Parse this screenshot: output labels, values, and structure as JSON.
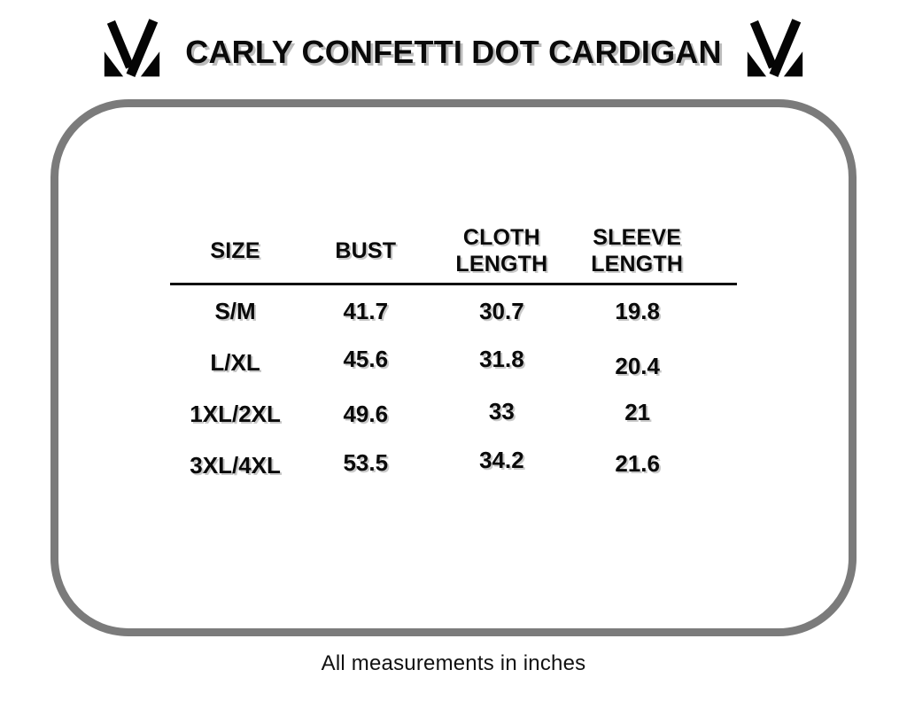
{
  "header": {
    "title": "CARLY CONFETTI DOT CARDIGAN",
    "logo_icon": "m-brand-logo"
  },
  "table": {
    "columns": [
      "SIZE",
      "BUST",
      "CLOTH\nLENGTH",
      "SLEEVE\nLENGTH"
    ],
    "rows": [
      [
        "S/M",
        "41.7",
        "30.7",
        "19.8"
      ],
      [
        "L/XL",
        "45.6",
        "31.8",
        "20.4"
      ],
      [
        "1XL/2XL",
        "49.6",
        "33",
        "21"
      ],
      [
        "3XL/4XL",
        "53.5",
        "34.2",
        "21.6"
      ]
    ]
  },
  "footer": {
    "note": "All measurements in inches"
  },
  "colors": {
    "panel_border": "#7b7b7b",
    "text": "#0a0a0a",
    "title_shadow": "#bcbcbc",
    "background": "#ffffff"
  }
}
